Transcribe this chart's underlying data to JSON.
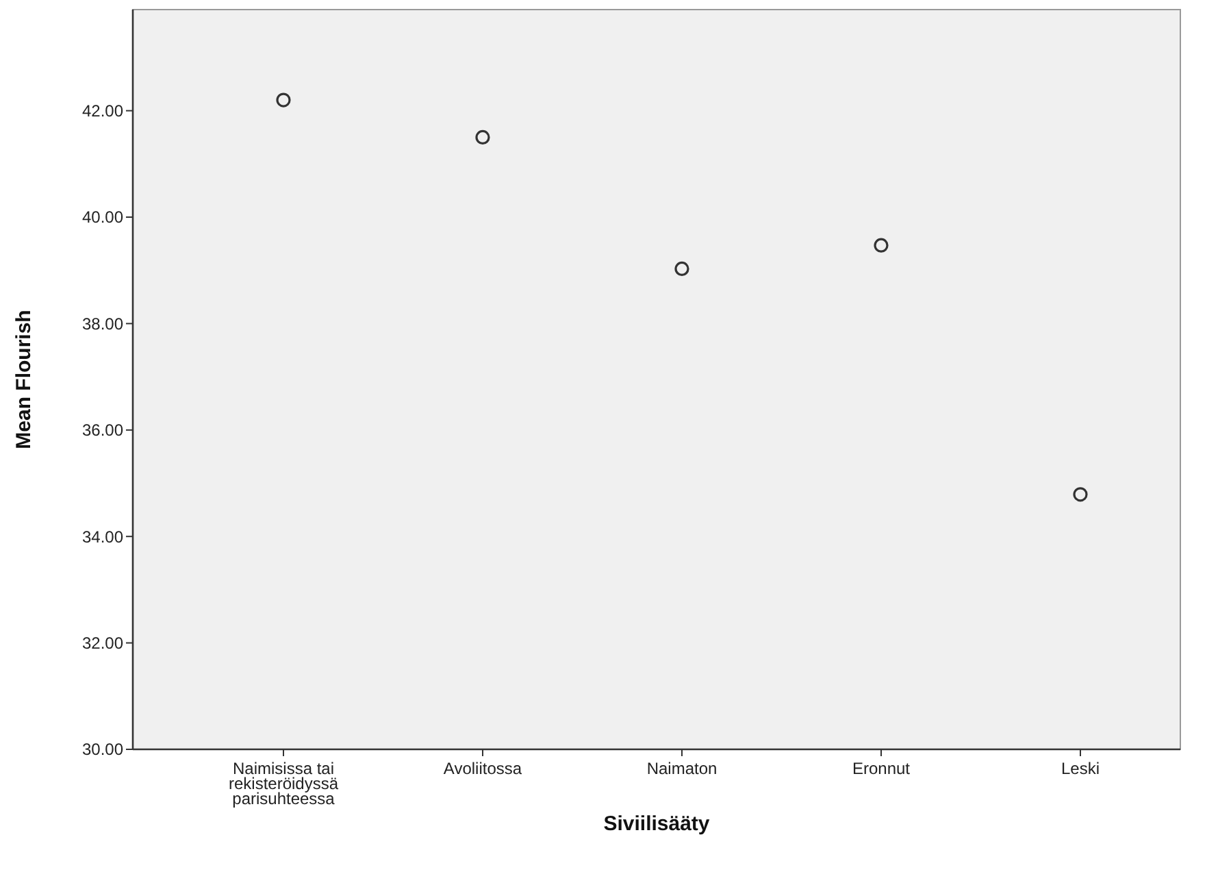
{
  "chart_data": {
    "type": "scatter",
    "xlabel": "Siviilisääty",
    "ylabel": "Mean Flourish",
    "categories": [
      "Naimisissa tai rekisteröidyssä parisuhteessa",
      "Avoliitossa",
      "Naimaton",
      "Eronnut",
      "Leski"
    ],
    "series": [
      {
        "color": "#333333",
        "values": [
          42.2,
          41.5,
          39.03,
          39.47,
          34.79
        ]
      }
    ],
    "ylim": [
      30,
      43.9
    ],
    "yticks": [
      {
        "value": 30,
        "label": "30.00"
      },
      {
        "value": 32,
        "label": "32.00"
      },
      {
        "value": 34,
        "label": "34.00"
      },
      {
        "value": 36,
        "label": "36.00"
      },
      {
        "value": 38,
        "label": "38.00"
      },
      {
        "value": 40,
        "label": "40.00"
      },
      {
        "value": 42,
        "label": "42.00"
      }
    ],
    "grid": false,
    "marker": "circle"
  }
}
